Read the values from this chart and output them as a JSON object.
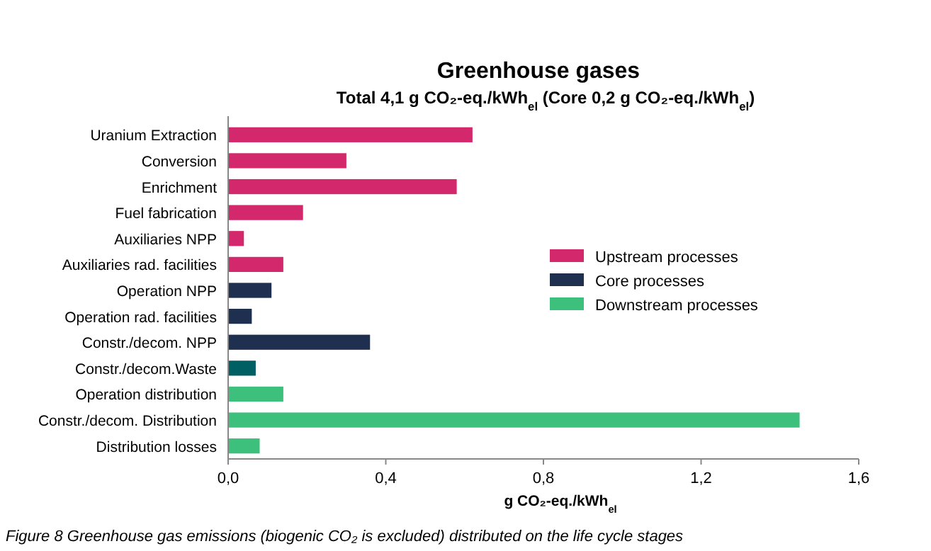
{
  "chart_data": {
    "type": "bar",
    "orientation": "horizontal",
    "title": "Greenhouse gases",
    "subtitle": "Total 4,1 g CO₂-eq./kWh$_{el}$  (Core 0,2 g CO₂-eq./kWh$_{el}$)",
    "xlabel": "g CO₂-eq./kWh$_{el}$",
    "categories": [
      "Uranium Extraction",
      "Conversion",
      "Enrichment",
      "Fuel fabrication",
      "Auxiliaries NPP",
      "Auxiliaries rad. facilities",
      "Operation NPP",
      "Operation rad. facilities",
      "Constr./decom. NPP",
      "Constr./decom.Waste",
      "Operation distribution",
      "Constr./decom. Distribution",
      "Distribution losses"
    ],
    "series": [
      {
        "name": "Upstream processes",
        "color": "#d3286c",
        "values": [
          0.62,
          0.3,
          0.58,
          0.19,
          0.04,
          0.14,
          null,
          null,
          null,
          null,
          null,
          null,
          null
        ]
      },
      {
        "name": "Core processes",
        "color": "#1f2f4f",
        "colors": [
          null,
          null,
          null,
          null,
          null,
          null,
          "#1f2f4f",
          "#1f2f4f",
          "#1f2f4f",
          "#005f63",
          null,
          null,
          null
        ],
        "values": [
          null,
          null,
          null,
          null,
          null,
          null,
          0.11,
          0.06,
          0.36,
          0.07,
          null,
          null,
          null
        ]
      },
      {
        "name": "Downstream processes",
        "color": "#3cc07c",
        "values": [
          null,
          null,
          null,
          null,
          null,
          null,
          null,
          null,
          null,
          null,
          0.14,
          1.45,
          0.08
        ]
      }
    ],
    "xlim": [
      0,
      1.6
    ],
    "xticks": [
      {
        "value": 0,
        "label": "0,0"
      },
      {
        "value": 0.4,
        "label": "0,4"
      },
      {
        "value": 0.8,
        "label": "0,8"
      },
      {
        "value": 1.2,
        "label": "1,2"
      },
      {
        "value": 1.6,
        "label": "1,6"
      }
    ],
    "legend": "right",
    "grid": false,
    "annotations": [
      "Figure 8 Greenhouse gas emissions (biogenic CO₂ is excluded) distributed on the life cycle stages"
    ]
  }
}
